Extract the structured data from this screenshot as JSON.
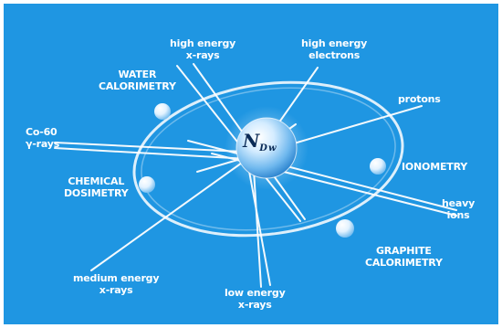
{
  "colors": {
    "background": "#1f96e2",
    "lines": "#ffffff",
    "text": "#ffffff",
    "nucleus_text": "#0a2a55"
  },
  "center": {
    "main": "N",
    "subscript": "Dw"
  },
  "labels": {
    "high_energy_xrays": [
      "high energy",
      "x-rays"
    ],
    "high_energy_electrons": [
      "high energy",
      "electrons"
    ],
    "water_calorimetry": [
      "WATER",
      "CALORIMETRY"
    ],
    "protons": [
      "protons"
    ],
    "co60": [
      "Co-60",
      "γ-rays"
    ],
    "ionometry": [
      "IONOMETRY"
    ],
    "chemical_dosimetry": [
      "CHEMICAL",
      "DOSIMETRY"
    ],
    "heavy_ions": [
      "heavy",
      "ions"
    ],
    "graphite_calorimetry": [
      "GRAPHITE",
      "CALORIMETRY"
    ],
    "medium_energy_xrays": [
      "medium energy",
      "x-rays"
    ],
    "low_energy_xrays": [
      "low energy",
      "x-rays"
    ]
  }
}
